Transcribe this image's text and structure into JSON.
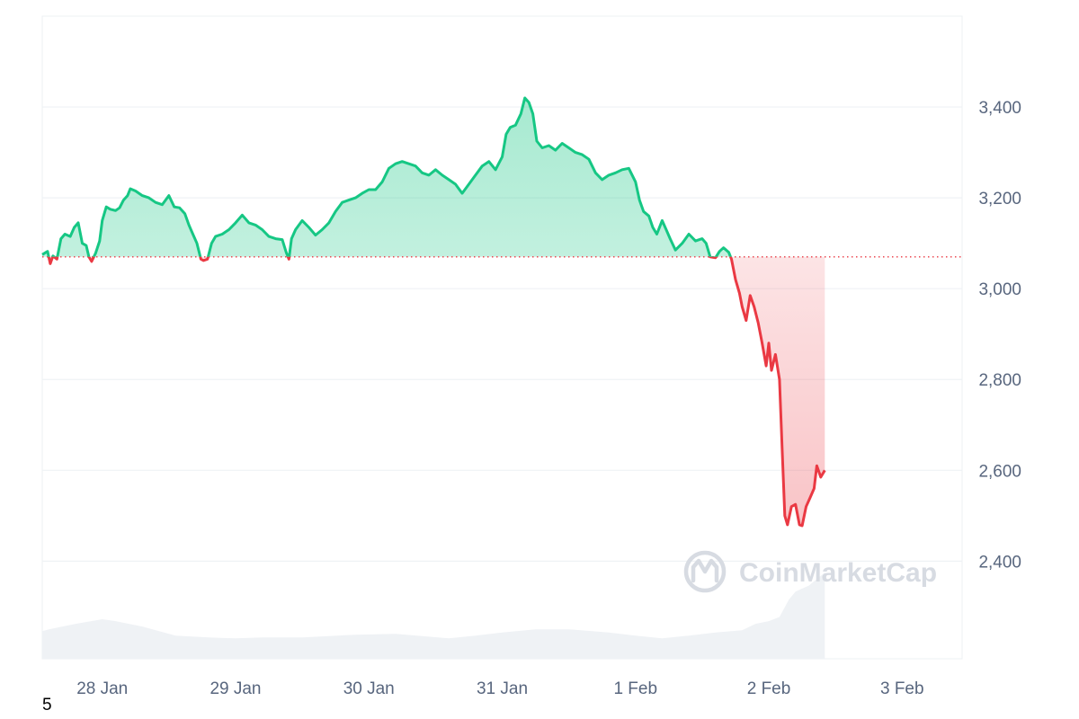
{
  "chart_data": {
    "type": "area",
    "title": "",
    "xlabel": "",
    "ylabel": "",
    "baseline": 3070,
    "ylim": [
      2185,
      3600
    ],
    "y_ticks": [
      2400,
      2600,
      2800,
      3000,
      3200,
      3400
    ],
    "y_tick_labels": [
      "2,400",
      "2,600",
      "2,800",
      "3,000",
      "3,200",
      "3,400"
    ],
    "x_tick_labels": [
      "28 Jan",
      "29 Jan",
      "30 Jan",
      "31 Jan",
      "1 Feb",
      "2 Feb",
      "3 Feb"
    ],
    "x_range_days": [
      27.55,
      34.45
    ],
    "colors": {
      "up": "#16c784",
      "down": "#ea3943",
      "volume": "#eff2f5",
      "grid": "#eff2f5",
      "baseline": "#ea3943"
    },
    "series": [
      {
        "values": [
          [
            27.55,
            3075
          ],
          [
            27.59,
            3082
          ],
          [
            27.61,
            3055
          ],
          [
            27.63,
            3072
          ],
          [
            27.66,
            3065
          ],
          [
            27.69,
            3110
          ],
          [
            27.72,
            3120
          ],
          [
            27.76,
            3115
          ],
          [
            27.79,
            3135
          ],
          [
            27.82,
            3145
          ],
          [
            27.85,
            3100
          ],
          [
            27.88,
            3095
          ],
          [
            27.9,
            3070
          ],
          [
            27.92,
            3060
          ],
          [
            27.95,
            3078
          ],
          [
            27.98,
            3105
          ],
          [
            28.0,
            3150
          ],
          [
            28.03,
            3180
          ],
          [
            28.06,
            3175
          ],
          [
            28.1,
            3172
          ],
          [
            28.13,
            3178
          ],
          [
            28.16,
            3195
          ],
          [
            28.19,
            3205
          ],
          [
            28.21,
            3220
          ],
          [
            28.25,
            3215
          ],
          [
            28.3,
            3205
          ],
          [
            28.35,
            3200
          ],
          [
            28.4,
            3190
          ],
          [
            28.45,
            3185
          ],
          [
            28.5,
            3205
          ],
          [
            28.54,
            3180
          ],
          [
            28.58,
            3178
          ],
          [
            28.62,
            3165
          ],
          [
            28.65,
            3140
          ],
          [
            28.68,
            3120
          ],
          [
            28.71,
            3100
          ],
          [
            28.74,
            3065
          ],
          [
            28.76,
            3062
          ],
          [
            28.79,
            3065
          ],
          [
            28.82,
            3100
          ],
          [
            28.85,
            3115
          ],
          [
            28.9,
            3120
          ],
          [
            28.95,
            3130
          ],
          [
            29.0,
            3145
          ],
          [
            29.05,
            3162
          ],
          [
            29.1,
            3145
          ],
          [
            29.15,
            3140
          ],
          [
            29.2,
            3130
          ],
          [
            29.25,
            3115
          ],
          [
            29.3,
            3110
          ],
          [
            29.35,
            3108
          ],
          [
            29.38,
            3080
          ],
          [
            29.4,
            3065
          ],
          [
            29.42,
            3110
          ],
          [
            29.45,
            3130
          ],
          [
            29.5,
            3150
          ],
          [
            29.55,
            3135
          ],
          [
            29.6,
            3118
          ],
          [
            29.65,
            3130
          ],
          [
            29.7,
            3145
          ],
          [
            29.75,
            3170
          ],
          [
            29.8,
            3190
          ],
          [
            29.85,
            3195
          ],
          [
            29.9,
            3200
          ],
          [
            29.95,
            3210
          ],
          [
            30.0,
            3218
          ],
          [
            30.05,
            3218
          ],
          [
            30.1,
            3235
          ],
          [
            30.15,
            3265
          ],
          [
            30.2,
            3275
          ],
          [
            30.25,
            3280
          ],
          [
            30.3,
            3275
          ],
          [
            30.35,
            3270
          ],
          [
            30.4,
            3255
          ],
          [
            30.45,
            3250
          ],
          [
            30.5,
            3262
          ],
          [
            30.55,
            3250
          ],
          [
            30.6,
            3240
          ],
          [
            30.65,
            3230
          ],
          [
            30.7,
            3210
          ],
          [
            30.75,
            3230
          ],
          [
            30.8,
            3250
          ],
          [
            30.85,
            3270
          ],
          [
            30.9,
            3280
          ],
          [
            30.95,
            3262
          ],
          [
            31.0,
            3290
          ],
          [
            31.03,
            3340
          ],
          [
            31.06,
            3355
          ],
          [
            31.1,
            3360
          ],
          [
            31.14,
            3385
          ],
          [
            31.17,
            3420
          ],
          [
            31.2,
            3410
          ],
          [
            31.23,
            3385
          ],
          [
            31.26,
            3325
          ],
          [
            31.3,
            3310
          ],
          [
            31.35,
            3315
          ],
          [
            31.4,
            3305
          ],
          [
            31.45,
            3320
          ],
          [
            31.5,
            3310
          ],
          [
            31.55,
            3300
          ],
          [
            31.6,
            3295
          ],
          [
            31.65,
            3285
          ],
          [
            31.7,
            3255
          ],
          [
            31.75,
            3240
          ],
          [
            31.8,
            3250
          ],
          [
            31.85,
            3255
          ],
          [
            31.9,
            3262
          ],
          [
            31.95,
            3265
          ],
          [
            32.0,
            3235
          ],
          [
            32.03,
            3195
          ],
          [
            32.06,
            3170
          ],
          [
            32.1,
            3160
          ],
          [
            32.13,
            3135
          ],
          [
            32.16,
            3120
          ],
          [
            32.2,
            3150
          ],
          [
            32.23,
            3130
          ],
          [
            32.26,
            3110
          ],
          [
            32.3,
            3085
          ],
          [
            32.35,
            3100
          ],
          [
            32.4,
            3120
          ],
          [
            32.45,
            3105
          ],
          [
            32.5,
            3110
          ],
          [
            32.53,
            3100
          ],
          [
            32.56,
            3070
          ],
          [
            32.6,
            3068
          ],
          [
            32.63,
            3082
          ],
          [
            32.66,
            3090
          ],
          [
            32.68,
            3085
          ],
          [
            32.7,
            3080
          ],
          [
            32.72,
            3065
          ],
          [
            32.75,
            3020
          ],
          [
            32.78,
            2990
          ],
          [
            32.8,
            2960
          ],
          [
            32.83,
            2930
          ],
          [
            32.86,
            2985
          ],
          [
            32.89,
            2960
          ],
          [
            32.92,
            2925
          ],
          [
            32.95,
            2880
          ],
          [
            32.98,
            2830
          ],
          [
            33.0,
            2880
          ],
          [
            33.02,
            2820
          ],
          [
            33.05,
            2855
          ],
          [
            33.08,
            2800
          ],
          [
            33.1,
            2650
          ],
          [
            33.12,
            2500
          ],
          [
            33.14,
            2480
          ],
          [
            33.17,
            2520
          ],
          [
            33.2,
            2525
          ],
          [
            33.23,
            2480
          ],
          [
            33.25,
            2478
          ],
          [
            33.28,
            2520
          ],
          [
            33.31,
            2540
          ],
          [
            33.34,
            2560
          ],
          [
            33.36,
            2610
          ],
          [
            33.39,
            2585
          ],
          [
            33.42,
            2600
          ]
        ]
      }
    ],
    "volume": [
      [
        27.55,
        2246
      ],
      [
        27.6,
        2250
      ],
      [
        27.8,
        2262
      ],
      [
        28.0,
        2272
      ],
      [
        28.1,
        2268
      ],
      [
        28.3,
        2256
      ],
      [
        28.55,
        2236
      ],
      [
        28.8,
        2232
      ],
      [
        29.0,
        2230
      ],
      [
        29.2,
        2232
      ],
      [
        29.5,
        2232
      ],
      [
        29.7,
        2235
      ],
      [
        29.9,
        2238
      ],
      [
        30.2,
        2240
      ],
      [
        30.4,
        2235
      ],
      [
        30.6,
        2230
      ],
      [
        30.8,
        2236
      ],
      [
        31.0,
        2243
      ],
      [
        31.25,
        2250
      ],
      [
        31.5,
        2250
      ],
      [
        31.8,
        2243
      ],
      [
        32.0,
        2236
      ],
      [
        32.2,
        2230
      ],
      [
        32.4,
        2236
      ],
      [
        32.6,
        2243
      ],
      [
        32.8,
        2248
      ],
      [
        32.9,
        2262
      ],
      [
        33.0,
        2268
      ],
      [
        33.08,
        2277
      ],
      [
        33.15,
        2315
      ],
      [
        33.2,
        2333
      ],
      [
        33.3,
        2346
      ],
      [
        33.42,
        2375
      ]
    ],
    "watermark": "CoinMarketCap"
  },
  "corner_label": "5"
}
